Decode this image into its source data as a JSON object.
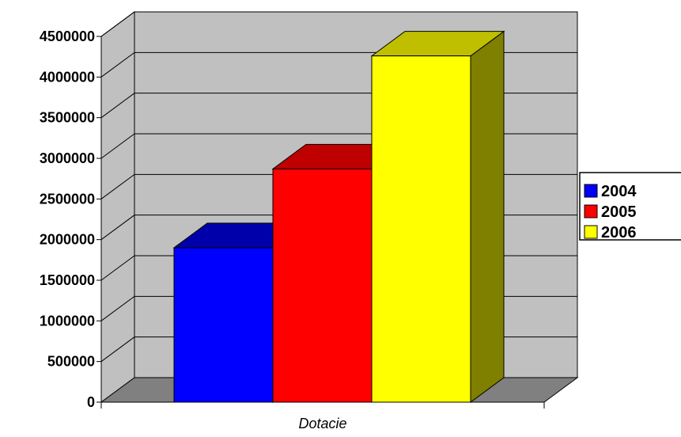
{
  "chart_data": {
    "type": "bar",
    "style": "3d-clustered-column",
    "categories": [
      "Dotacie"
    ],
    "xlabel": "Dotacie",
    "ylabel": "",
    "ylim": [
      0,
      4500000
    ],
    "y_ticks": [
      0,
      500000,
      1000000,
      1500000,
      2000000,
      2500000,
      3000000,
      3500000,
      4000000,
      4500000
    ],
    "y_tick_labels": [
      "0",
      "500000",
      "1000000",
      "1500000",
      "2000000",
      "2500000",
      "3000000",
      "3500000",
      "4000000",
      "4500000"
    ],
    "grid": true,
    "legend_position": "right",
    "series": [
      {
        "name": "2004",
        "values": [
          1900000
        ],
        "color": "#0000FF",
        "top_color": "#0000AA",
        "side_color": "#00007F"
      },
      {
        "name": "2005",
        "values": [
          2870000
        ],
        "color": "#FF0000",
        "top_color": "#BF0000",
        "side_color": "#7F0000"
      },
      {
        "name": "2006",
        "values": [
          4260000
        ],
        "color": "#FFFF00",
        "top_color": "#BFBF00",
        "side_color": "#7F7F00"
      }
    ],
    "wall_color": "#C0C0C0",
    "floor_color": "#808080"
  }
}
